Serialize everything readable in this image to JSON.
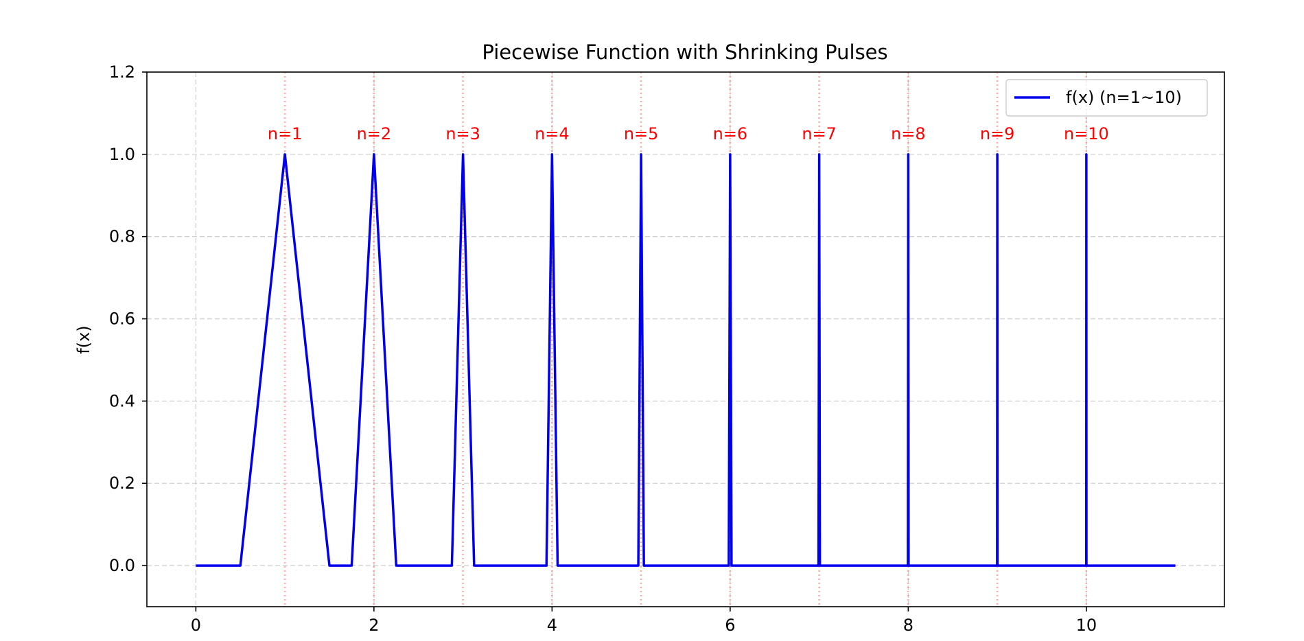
{
  "chart_data": {
    "type": "line",
    "title": "Piecewise Function with Shrinking Pulses",
    "xlabel": "",
    "ylabel": "f(x)",
    "xlim": [
      -0.55,
      11.55
    ],
    "ylim": [
      -0.1,
      1.2
    ],
    "xticks": [
      0,
      2,
      4,
      6,
      8,
      10
    ],
    "yticks": [
      0.0,
      0.2,
      0.4,
      0.6,
      0.8,
      1.0,
      1.2
    ],
    "xtick_labels": [
      "0",
      "2",
      "4",
      "6",
      "8",
      "10"
    ],
    "ytick_labels": [
      "0.0",
      "0.2",
      "0.4",
      "0.6",
      "0.8",
      "1.0",
      "1.2"
    ],
    "grid": true,
    "legend_position": "top-right",
    "series": [
      {
        "name": "f(x) (n=1~10)",
        "color": "#0000ee",
        "x_range": [
          0,
          11
        ],
        "peak_height": 1.0,
        "pulse_centers": [
          1,
          2,
          3,
          4,
          5,
          6,
          7,
          8,
          9,
          10
        ],
        "pulse_half_widths": [
          0.5,
          0.25,
          0.125,
          0.0625,
          0.03125,
          0.015625,
          0.0078125,
          0.00390625,
          0.001953125,
          0.0009765625
        ]
      }
    ],
    "reference_lines": {
      "color": "#ff8080",
      "x": [
        1,
        2,
        3,
        4,
        5,
        6,
        7,
        8,
        9,
        10
      ]
    },
    "annotations": [
      {
        "x": 1,
        "y": 1.05,
        "text": "n=1"
      },
      {
        "x": 2,
        "y": 1.05,
        "text": "n=2"
      },
      {
        "x": 3,
        "y": 1.05,
        "text": "n=3"
      },
      {
        "x": 4,
        "y": 1.05,
        "text": "n=4"
      },
      {
        "x": 5,
        "y": 1.05,
        "text": "n=5"
      },
      {
        "x": 6,
        "y": 1.05,
        "text": "n=6"
      },
      {
        "x": 7,
        "y": 1.05,
        "text": "n=7"
      },
      {
        "x": 8,
        "y": 1.05,
        "text": "n=8"
      },
      {
        "x": 9,
        "y": 1.05,
        "text": "n=9"
      },
      {
        "x": 10,
        "y": 1.05,
        "text": "n=10"
      }
    ],
    "annotation_color": "#ff0000"
  }
}
